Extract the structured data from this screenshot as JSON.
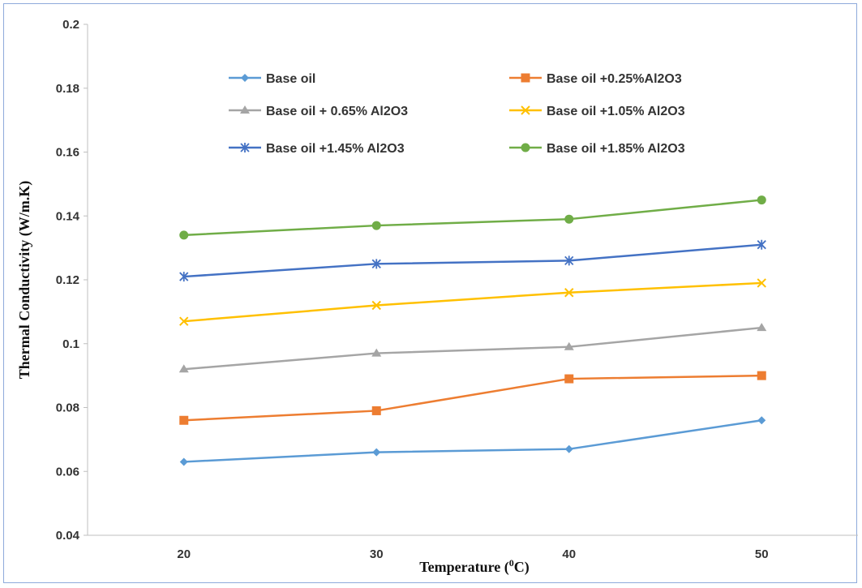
{
  "chart_data": {
    "type": "line",
    "x": [
      20,
      30,
      40,
      50
    ],
    "xlabel": "Temperature (",
    "xlabel_sup": "0",
    "xlabel_end": "C)",
    "ylabel": "Thermal Conductivity (W/m.K)",
    "ylim": [
      0.04,
      0.2
    ],
    "yticks": [
      "0.04",
      "0.06",
      "0.08",
      "0.1",
      "0.12",
      "0.14",
      "0.16",
      "0.18",
      "0.2"
    ],
    "xticks": [
      "20",
      "30",
      "40",
      "50"
    ],
    "grid": false,
    "legend_position": "top",
    "series": [
      {
        "name": "Base oil",
        "values": [
          0.063,
          0.066,
          0.067,
          0.076
        ],
        "color": "#5b9bd5",
        "marker": "diamond"
      },
      {
        "name": "Base oil +0.25%Al2O3",
        "values": [
          0.076,
          0.079,
          0.089,
          0.09
        ],
        "color": "#ed7d31",
        "marker": "square"
      },
      {
        "name": "Base oil + 0.65% Al2O3",
        "values": [
          0.092,
          0.097,
          0.099,
          0.105
        ],
        "color": "#a5a5a5",
        "marker": "triangle"
      },
      {
        "name": "Base oil +1.05% Al2O3",
        "values": [
          0.107,
          0.112,
          0.116,
          0.119
        ],
        "color": "#ffc000",
        "marker": "x"
      },
      {
        "name": "Base oil +1.45% Al2O3",
        "values": [
          0.121,
          0.125,
          0.126,
          0.131
        ],
        "color": "#4472c4",
        "marker": "star"
      },
      {
        "name": "Base oil +1.85% Al2O3",
        "values": [
          0.134,
          0.137,
          0.139,
          0.145
        ],
        "color": "#70ad47",
        "marker": "circle"
      }
    ]
  }
}
